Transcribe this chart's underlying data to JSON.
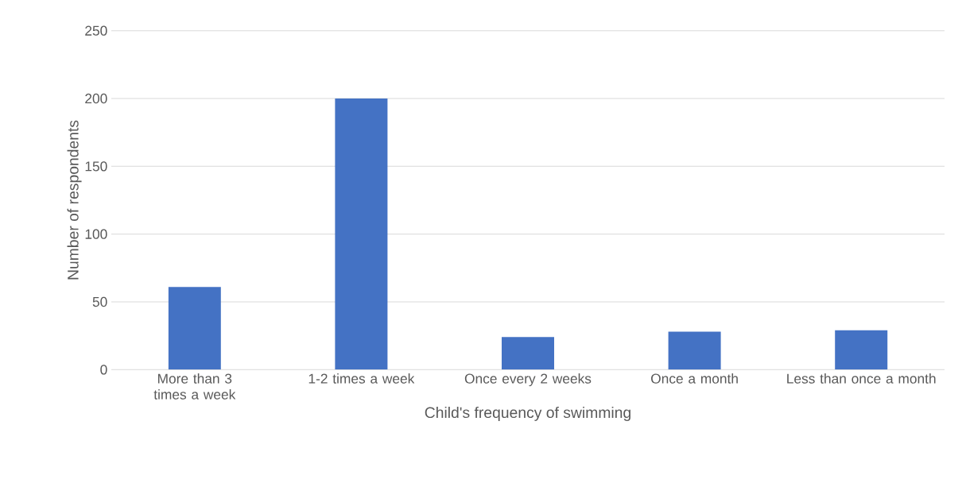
{
  "chart_data": {
    "type": "bar",
    "categories": [
      "More than 3 times a week",
      "1-2 times a week",
      "Once every 2 weeks",
      "Once a month",
      "Less than once a month"
    ],
    "values": [
      61,
      200,
      24,
      28,
      29
    ],
    "color": "#4472c4",
    "xlabel": "Child's frequency of swimming",
    "ylabel": "Number of respondents",
    "ylim": [
      0,
      250
    ],
    "yticks": [
      0,
      50,
      100,
      150,
      200,
      250
    ],
    "grid": "y"
  }
}
